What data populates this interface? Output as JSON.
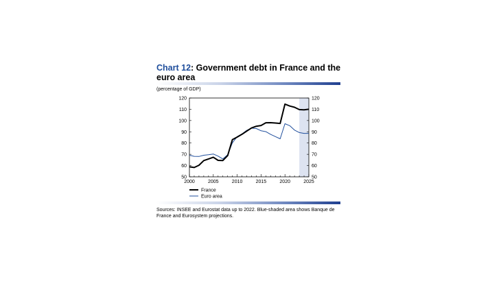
{
  "header": {
    "title_num": "Chart 12",
    "title_rest": ": Government debt in France and the euro area",
    "unit": "(percentage of GDP)"
  },
  "footer": {
    "source": "Sources: INSEE and Eurostat data up to 2022. Blue-shaded area shows Banque de France and Eurosystem projections."
  },
  "chart_data": {
    "type": "line",
    "title": "Government debt in France and the euro area",
    "ylabel": "(percentage of GDP)",
    "xlim": [
      2000,
      2025
    ],
    "ylim": [
      50,
      120
    ],
    "x_ticks": [
      "2000",
      "2005",
      "2010",
      "2015",
      "2020",
      "2025"
    ],
    "y_ticks": [
      "50",
      "60",
      "70",
      "80",
      "90",
      "100",
      "110",
      "120"
    ],
    "projection_range": [
      2023,
      2025
    ],
    "legend_position": "bottom-left",
    "grid": false,
    "x": [
      2000,
      2001,
      2002,
      2003,
      2004,
      2005,
      2006,
      2007,
      2008,
      2009,
      2010,
      2011,
      2012,
      2013,
      2014,
      2015,
      2016,
      2017,
      2018,
      2019,
      2020,
      2021,
      2022,
      2023,
      2024,
      2025
    ],
    "series": [
      {
        "name": "France",
        "color": "#000000",
        "values": [
          58.9,
          58.3,
          60.3,
          64.4,
          65.9,
          67.4,
          64.6,
          64.5,
          68.8,
          83.0,
          85.3,
          87.8,
          90.6,
          93.4,
          94.9,
          95.6,
          98.0,
          98.1,
          97.8,
          97.4,
          114.6,
          112.9,
          111.8,
          109.7,
          109.5,
          110.0
        ]
      },
      {
        "name": "Euro area",
        "color": "#1f4e9c",
        "values": [
          69.2,
          68.2,
          68.1,
          69.2,
          69.6,
          70.3,
          68.4,
          65.9,
          69.6,
          80.2,
          85.7,
          88.1,
          91.3,
          93.2,
          92.9,
          90.9,
          90.1,
          87.7,
          85.7,
          83.8,
          97.2,
          95.4,
          91.5,
          89.3,
          88.6,
          88.6
        ]
      }
    ]
  }
}
